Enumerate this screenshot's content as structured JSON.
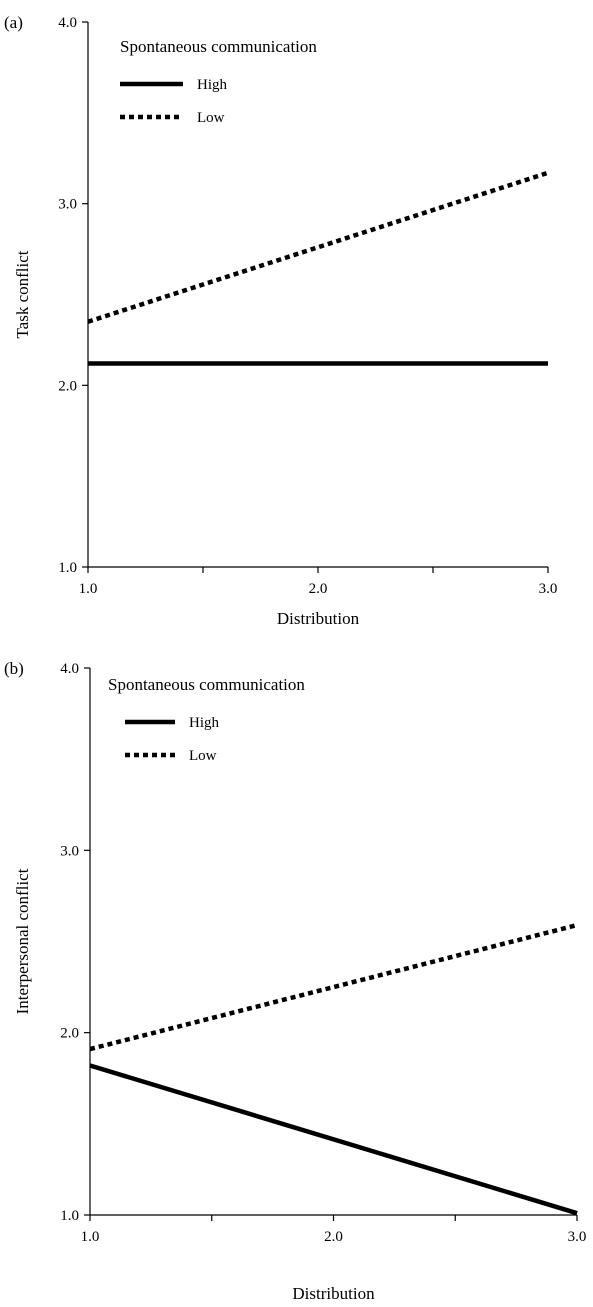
{
  "chart_data": [
    {
      "type": "line",
      "panel_label": "(a)",
      "title": "",
      "xlabel": "Distribution",
      "ylabel": "Task conflict",
      "xlim": [
        1.0,
        3.0
      ],
      "ylim": [
        1.0,
        4.0
      ],
      "x_ticks": [
        1.0,
        1.5,
        2.0,
        2.5,
        3.0
      ],
      "x_tick_labels": [
        "1.0",
        "",
        "2.0",
        "",
        "3.0"
      ],
      "y_ticks": [
        1.0,
        2.0,
        3.0,
        4.0
      ],
      "y_tick_labels": [
        "1.0",
        "2.0",
        "3.0",
        "4.0"
      ],
      "grid": false,
      "legend_title": "Spontaneous communication",
      "legend_position": "top-left",
      "series": [
        {
          "name": "High",
          "style": "solid",
          "color": "#000000",
          "x": [
            1.0,
            3.0
          ],
          "values": [
            2.12,
            2.12
          ]
        },
        {
          "name": "Low",
          "style": "dotted",
          "color": "#000000",
          "x": [
            1.0,
            3.0
          ],
          "values": [
            2.35,
            3.17
          ]
        }
      ]
    },
    {
      "type": "line",
      "panel_label": "(b)",
      "title": "",
      "xlabel": "Distribution",
      "ylabel": "Interpersonal conflict",
      "xlim": [
        1.0,
        3.0
      ],
      "ylim": [
        1.0,
        4.0
      ],
      "x_ticks": [
        1.0,
        1.5,
        2.0,
        2.5,
        3.0
      ],
      "x_tick_labels": [
        "1.0",
        "",
        "2.0",
        "",
        "3.0"
      ],
      "y_ticks": [
        1.0,
        2.0,
        3.0,
        4.0
      ],
      "y_tick_labels": [
        "1.0",
        "2.0",
        "3.0",
        "4.0"
      ],
      "grid": false,
      "legend_title": "Spontaneous communication",
      "legend_position": "top-left",
      "series": [
        {
          "name": "High",
          "style": "solid",
          "color": "#000000",
          "x": [
            1.0,
            3.0
          ],
          "values": [
            1.82,
            1.01
          ]
        },
        {
          "name": "Low",
          "style": "dotted",
          "color": "#000000",
          "x": [
            1.0,
            3.0
          ],
          "values": [
            1.91,
            2.59
          ]
        }
      ]
    }
  ]
}
